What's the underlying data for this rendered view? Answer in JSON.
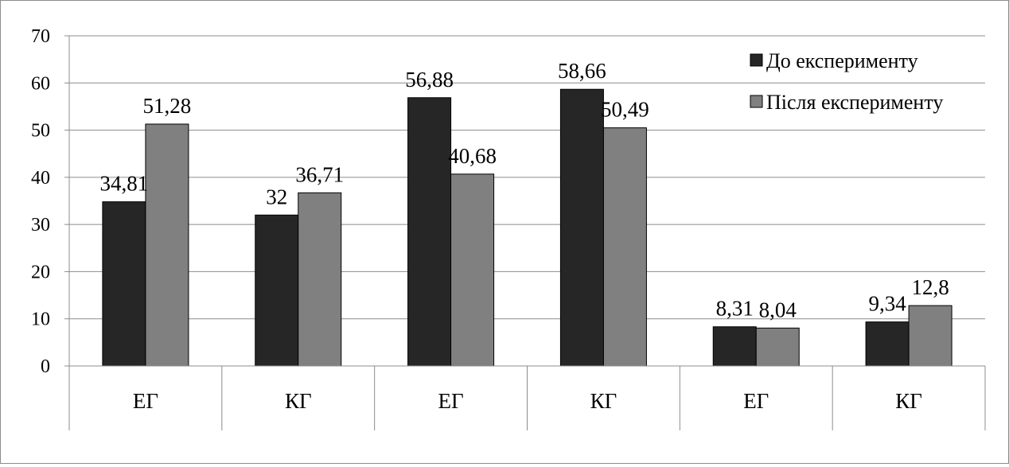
{
  "chart_data": {
    "type": "bar",
    "title": "",
    "xlabel": "",
    "ylabel": "",
    "categories": [
      "ЕГ",
      "КГ",
      "ЕГ",
      "КГ",
      "ЕГ",
      "КГ"
    ],
    "series": [
      {
        "name": "До експерименту",
        "color": "#262626",
        "values": [
          34.81,
          32,
          56.88,
          58.66,
          8.31,
          9.34
        ],
        "labels": [
          "34,81",
          "32",
          "56,88",
          "58,66",
          "8,31",
          "9,34"
        ]
      },
      {
        "name": "Після експерименту",
        "color": "#808080",
        "values": [
          51.28,
          36.71,
          40.68,
          50.49,
          8.04,
          12.8
        ],
        "labels": [
          "51,28",
          "36,71",
          "40,68",
          "50,49",
          "8,04",
          "12,8"
        ]
      }
    ],
    "ylim": [
      0,
      70
    ],
    "yticks": [
      0,
      10,
      20,
      30,
      40,
      50,
      60,
      70
    ],
    "grid": true,
    "legend": "top-right"
  }
}
